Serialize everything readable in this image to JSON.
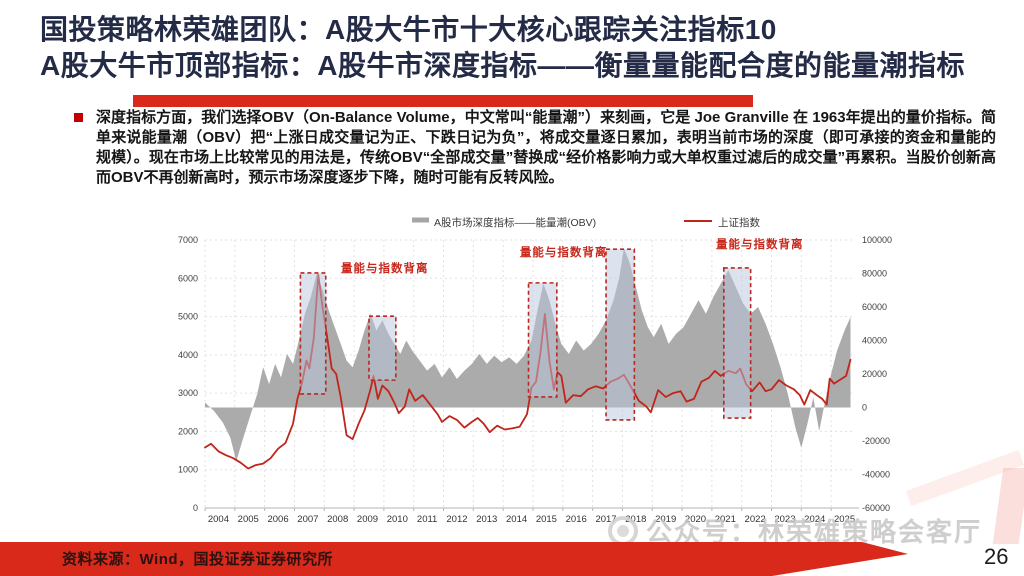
{
  "slide": {
    "title": {
      "line1": "国投策略林荣雄团队：A股大牛市十大核心跟踪关注指标10",
      "line2": "A股大牛市顶部指标：A股牛市深度指标——衡量量能配合度的能量潮指标"
    },
    "bullet_text": "深度指标方面，我们选择OBV（On-Balance Volume，中文常叫“能量潮”）来刻画，它是 Joe Granville 在 1963年提出的量价指标。简单来说能量潮（OBV）把“上涨日成交量记为正、下跌日记为负”，将成交量逐日累加，表明当前市场的深度（即可承接的资金和量能的规模）。现在市场上比较常见的用法是，传统OBV“全部成交量”替换成“经价格影响力或大单权重过滤后的成交量”再累积。当股价创新高而OBV不再创新高时，预示市场深度逐步下降，随时可能有反转风险。",
    "watermark": "公众号：林荣雄策略会客厅",
    "footer": {
      "source": "资料来源：Wind，国投证券证券研究所",
      "page": "26"
    },
    "colors": {
      "title": "#242b47",
      "accent": "#d8291a",
      "body": "#151515"
    }
  },
  "chart_data": {
    "type": "combo-area-line",
    "title": "",
    "legend": [
      {
        "label": "A股市场深度指标——能量潮(OBV)",
        "type": "area",
        "color": "#a6a6a6"
      },
      {
        "label": "上证指数",
        "type": "line",
        "color": "#c0251c"
      }
    ],
    "x_axis": {
      "min": 2004,
      "max": 2025.8,
      "labels": [
        "2004",
        "2005",
        "2006",
        "2007",
        "2008",
        "2009",
        "2010",
        "2011",
        "2012",
        "2013",
        "2014",
        "2015",
        "2016",
        "2017",
        "2018",
        "2019",
        "2020",
        "2021",
        "2022",
        "2023",
        "2024",
        "2025"
      ]
    },
    "left_axis": {
      "min": 0,
      "max": 7000,
      "step": 1000,
      "applies_to": "上证指数"
    },
    "right_axis": {
      "min": -60000,
      "max": 100000,
      "step": 20000,
      "applies_to": "能量潮(OBV)"
    },
    "grid": true,
    "series": [
      {
        "name": "A股市场深度指标——能量潮(OBV)",
        "axis": "right",
        "style": "area",
        "color": "#a6a6a6",
        "points": [
          [
            2004.0,
            3000
          ],
          [
            2004.3,
            -2000
          ],
          [
            2004.6,
            -9000
          ],
          [
            2004.85,
            -18000
          ],
          [
            2005.05,
            -32000
          ],
          [
            2005.25,
            -20000
          ],
          [
            2005.5,
            -6000
          ],
          [
            2005.75,
            8000
          ],
          [
            2005.95,
            24000
          ],
          [
            2006.15,
            14000
          ],
          [
            2006.35,
            26000
          ],
          [
            2006.55,
            18000
          ],
          [
            2006.75,
            32000
          ],
          [
            2006.95,
            26000
          ],
          [
            2007.15,
            40000
          ],
          [
            2007.35,
            56000
          ],
          [
            2007.55,
            66000
          ],
          [
            2007.75,
            80000
          ],
          [
            2007.95,
            70000
          ],
          [
            2008.15,
            58000
          ],
          [
            2008.35,
            48000
          ],
          [
            2008.55,
            38000
          ],
          [
            2008.75,
            28000
          ],
          [
            2008.95,
            24000
          ],
          [
            2009.15,
            34000
          ],
          [
            2009.35,
            46000
          ],
          [
            2009.55,
            56000
          ],
          [
            2009.75,
            46000
          ],
          [
            2009.95,
            52000
          ],
          [
            2010.15,
            44000
          ],
          [
            2010.35,
            38000
          ],
          [
            2010.55,
            32000
          ],
          [
            2010.75,
            40000
          ],
          [
            2010.95,
            34000
          ],
          [
            2011.2,
            28000
          ],
          [
            2011.45,
            22000
          ],
          [
            2011.7,
            26000
          ],
          [
            2011.95,
            18000
          ],
          [
            2012.2,
            24000
          ],
          [
            2012.45,
            17000
          ],
          [
            2012.7,
            22000
          ],
          [
            2012.95,
            26000
          ],
          [
            2013.2,
            32000
          ],
          [
            2013.45,
            26000
          ],
          [
            2013.7,
            31000
          ],
          [
            2013.95,
            27000
          ],
          [
            2014.2,
            30000
          ],
          [
            2014.45,
            26000
          ],
          [
            2014.7,
            31000
          ],
          [
            2014.95,
            40000
          ],
          [
            2015.15,
            58000
          ],
          [
            2015.35,
            74000
          ],
          [
            2015.55,
            64000
          ],
          [
            2015.75,
            50000
          ],
          [
            2015.95,
            38000
          ],
          [
            2016.2,
            32000
          ],
          [
            2016.45,
            40000
          ],
          [
            2016.7,
            34000
          ],
          [
            2016.95,
            38000
          ],
          [
            2017.2,
            44000
          ],
          [
            2017.45,
            52000
          ],
          [
            2017.7,
            64000
          ],
          [
            2017.9,
            78000
          ],
          [
            2018.05,
            95000
          ],
          [
            2018.25,
            86000
          ],
          [
            2018.45,
            72000
          ],
          [
            2018.65,
            58000
          ],
          [
            2018.85,
            48000
          ],
          [
            2019.05,
            42000
          ],
          [
            2019.3,
            50000
          ],
          [
            2019.55,
            38000
          ],
          [
            2019.8,
            44000
          ],
          [
            2020.05,
            48000
          ],
          [
            2020.3,
            56000
          ],
          [
            2020.55,
            64000
          ],
          [
            2020.8,
            56000
          ],
          [
            2021.05,
            66000
          ],
          [
            2021.3,
            74000
          ],
          [
            2021.55,
            82000
          ],
          [
            2021.8,
            72000
          ],
          [
            2022.05,
            62000
          ],
          [
            2022.3,
            56000
          ],
          [
            2022.55,
            60000
          ],
          [
            2022.8,
            50000
          ],
          [
            2023.05,
            38000
          ],
          [
            2023.3,
            24000
          ],
          [
            2023.55,
            8000
          ],
          [
            2023.8,
            -12000
          ],
          [
            2024.0,
            -24000
          ],
          [
            2024.2,
            -10000
          ],
          [
            2024.4,
            6000
          ],
          [
            2024.6,
            -14000
          ],
          [
            2024.8,
            4000
          ],
          [
            2025.0,
            20000
          ],
          [
            2025.2,
            34000
          ],
          [
            2025.45,
            46000
          ],
          [
            2025.65,
            54000
          ]
        ]
      },
      {
        "name": "上证指数",
        "axis": "left",
        "style": "line",
        "color": "#c0251c",
        "points": [
          [
            2004.0,
            1580
          ],
          [
            2004.2,
            1680
          ],
          [
            2004.45,
            1480
          ],
          [
            2004.7,
            1380
          ],
          [
            2004.95,
            1300
          ],
          [
            2005.2,
            1180
          ],
          [
            2005.45,
            1030
          ],
          [
            2005.7,
            1120
          ],
          [
            2005.95,
            1160
          ],
          [
            2006.2,
            1300
          ],
          [
            2006.45,
            1550
          ],
          [
            2006.7,
            1700
          ],
          [
            2006.95,
            2200
          ],
          [
            2007.1,
            2850
          ],
          [
            2007.25,
            3250
          ],
          [
            2007.4,
            3850
          ],
          [
            2007.5,
            3650
          ],
          [
            2007.65,
            4450
          ],
          [
            2007.8,
            6090
          ],
          [
            2007.95,
            5200
          ],
          [
            2008.1,
            4450
          ],
          [
            2008.25,
            3650
          ],
          [
            2008.4,
            3500
          ],
          [
            2008.55,
            2900
          ],
          [
            2008.75,
            1900
          ],
          [
            2008.95,
            1800
          ],
          [
            2009.15,
            2200
          ],
          [
            2009.35,
            2550
          ],
          [
            2009.55,
            3100
          ],
          [
            2009.65,
            3450
          ],
          [
            2009.8,
            2850
          ],
          [
            2009.95,
            3200
          ],
          [
            2010.15,
            3050
          ],
          [
            2010.35,
            2750
          ],
          [
            2010.5,
            2480
          ],
          [
            2010.7,
            2650
          ],
          [
            2010.85,
            3100
          ],
          [
            2011.05,
            2800
          ],
          [
            2011.3,
            2950
          ],
          [
            2011.55,
            2700
          ],
          [
            2011.8,
            2450
          ],
          [
            2011.95,
            2250
          ],
          [
            2012.2,
            2400
          ],
          [
            2012.45,
            2300
          ],
          [
            2012.7,
            2100
          ],
          [
            2012.95,
            2250
          ],
          [
            2013.15,
            2350
          ],
          [
            2013.35,
            2200
          ],
          [
            2013.55,
            1980
          ],
          [
            2013.8,
            2150
          ],
          [
            2014.05,
            2050
          ],
          [
            2014.3,
            2080
          ],
          [
            2014.55,
            2120
          ],
          [
            2014.8,
            2450
          ],
          [
            2014.95,
            3150
          ],
          [
            2015.1,
            3300
          ],
          [
            2015.25,
            4050
          ],
          [
            2015.4,
            5070
          ],
          [
            2015.55,
            3850
          ],
          [
            2015.7,
            3100
          ],
          [
            2015.82,
            3550
          ],
          [
            2015.95,
            3450
          ],
          [
            2016.1,
            2750
          ],
          [
            2016.35,
            2950
          ],
          [
            2016.6,
            2920
          ],
          [
            2016.85,
            3100
          ],
          [
            2017.1,
            3180
          ],
          [
            2017.35,
            3120
          ],
          [
            2017.6,
            3300
          ],
          [
            2017.85,
            3380
          ],
          [
            2018.05,
            3480
          ],
          [
            2018.3,
            3150
          ],
          [
            2018.55,
            2800
          ],
          [
            2018.8,
            2650
          ],
          [
            2018.95,
            2500
          ],
          [
            2019.2,
            3080
          ],
          [
            2019.45,
            2900
          ],
          [
            2019.7,
            3000
          ],
          [
            2019.95,
            3050
          ],
          [
            2020.15,
            2780
          ],
          [
            2020.4,
            2850
          ],
          [
            2020.65,
            3300
          ],
          [
            2020.9,
            3400
          ],
          [
            2021.1,
            3580
          ],
          [
            2021.3,
            3450
          ],
          [
            2021.55,
            3580
          ],
          [
            2021.8,
            3520
          ],
          [
            2021.95,
            3640
          ],
          [
            2022.15,
            3230
          ],
          [
            2022.35,
            3050
          ],
          [
            2022.6,
            3280
          ],
          [
            2022.8,
            3050
          ],
          [
            2023.0,
            3100
          ],
          [
            2023.25,
            3340
          ],
          [
            2023.5,
            3200
          ],
          [
            2023.75,
            3100
          ],
          [
            2023.95,
            2950
          ],
          [
            2024.1,
            2700
          ],
          [
            2024.3,
            3080
          ],
          [
            2024.5,
            2960
          ],
          [
            2024.7,
            2850
          ],
          [
            2024.85,
            2700
          ],
          [
            2024.95,
            3380
          ],
          [
            2025.1,
            3250
          ],
          [
            2025.3,
            3350
          ],
          [
            2025.5,
            3450
          ],
          [
            2025.65,
            3870
          ]
        ]
      }
    ],
    "annotations": {
      "label_text": "量能与指数背离",
      "label_color": "#c8281c",
      "labels": [
        {
          "year": 2008.56,
          "value": 6170
        },
        {
          "year": 2014.56,
          "value": 6580
        },
        {
          "year": 2021.14,
          "value": 6790
        }
      ],
      "box_fill": "rgba(185,198,221,0.5)",
      "box_border": "#b8291f",
      "boxes": [
        {
          "from": 2007.2,
          "to": 2008.05,
          "top": 6140,
          "bottom": 2980
        },
        {
          "from": 2009.5,
          "to": 2010.4,
          "top": 5010,
          "bottom": 3340
        },
        {
          "from": 2014.85,
          "to": 2015.8,
          "top": 5880,
          "bottom": 2900
        },
        {
          "from": 2017.45,
          "to": 2018.4,
          "top": 6760,
          "bottom": 2300
        },
        {
          "from": 2021.4,
          "to": 2022.3,
          "top": 6270,
          "bottom": 2350
        }
      ]
    }
  }
}
